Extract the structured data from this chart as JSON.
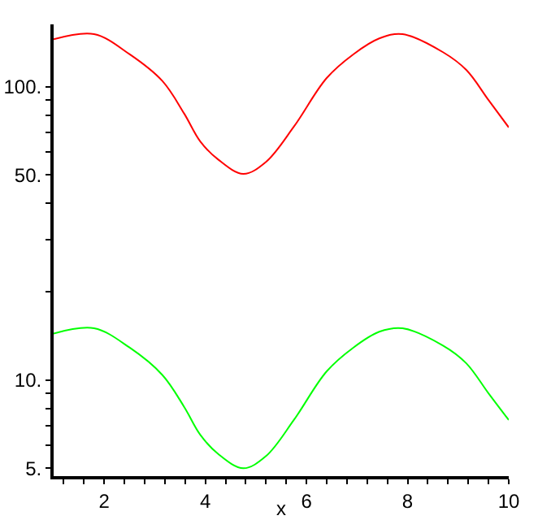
{
  "chart_data": {
    "type": "line",
    "xlabel": "x",
    "log": "y",
    "grid": false,
    "marker": "none",
    "line_style": "solid",
    "xlim": [
      1,
      10
    ],
    "ylim": [
      4.7,
      163
    ],
    "xticks": [
      {
        "value": 1.2,
        "label": null
      },
      {
        "value": 1.6,
        "label": null
      },
      2,
      {
        "value": 2.4,
        "label": null
      },
      {
        "value": 2.8,
        "label": null
      },
      {
        "value": 3.2,
        "label": null
      },
      {
        "value": 3.6,
        "label": null
      },
      4,
      {
        "value": 4.4,
        "label": null
      },
      {
        "value": 4.8,
        "label": null
      },
      {
        "value": 5.2,
        "label": null
      },
      {
        "value": 5.6,
        "label": null
      },
      6,
      {
        "value": 6.4,
        "label": null
      },
      {
        "value": 6.8,
        "label": null
      },
      {
        "value": 7.2,
        "label": null
      },
      {
        "value": 7.6,
        "label": null
      },
      8,
      {
        "value": 8.4,
        "label": null
      },
      {
        "value": 8.8,
        "label": null
      },
      {
        "value": 9.2,
        "label": null
      },
      {
        "value": 9.6,
        "label": null
      },
      10
    ],
    "yticks": [
      {
        "value": 5,
        "label": "5."
      },
      {
        "value": 6,
        "label": null
      },
      {
        "value": 7,
        "label": null
      },
      {
        "value": 8,
        "label": null
      },
      {
        "value": 9,
        "label": null
      },
      {
        "value": 10,
        "label": "10."
      },
      {
        "value": 20,
        "label": null
      },
      {
        "value": 30,
        "label": null
      },
      {
        "value": 40,
        "label": null
      },
      {
        "value": 50,
        "label": "50."
      },
      {
        "value": 60,
        "label": null
      },
      {
        "value": 70,
        "label": null
      },
      {
        "value": 80,
        "label": null
      },
      {
        "value": 90,
        "label": null
      },
      {
        "value": 100,
        "label": "100."
      }
    ],
    "x": [
      1,
      1.8,
      2.5,
      3.15,
      3.58,
      3.9,
      4.25,
      4.75,
      5.2,
      5.75,
      6.4,
      6.93,
      7.44,
      7.9,
      8.7,
      9.16,
      9.6,
      10
    ],
    "series": [
      {
        "color": "#ff0000",
        "values": [
          145,
          151,
          129,
          104.5,
          81,
          65,
          56.5,
          50.4,
          55.4,
          73,
          107,
          129,
          146,
          151,
          131,
          114,
          90,
          72.6
        ]
      },
      {
        "color": "#00ff00",
        "values": [
          14.4,
          15.0,
          12.9,
          10.4,
          8.1,
          6.5,
          5.6,
          5.0,
          5.5,
          7.3,
          10.7,
          12.9,
          14.6,
          15.0,
          13.1,
          11.4,
          9.0,
          7.3
        ]
      }
    ]
  }
}
